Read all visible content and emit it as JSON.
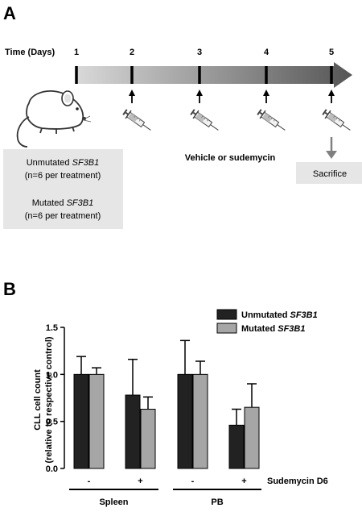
{
  "panel_a": {
    "letter": "A",
    "time_label": "Time (Days)",
    "days": [
      "1",
      "2",
      "3",
      "4",
      "5"
    ],
    "injection_days": [
      2,
      3,
      4,
      5
    ],
    "treatment_label": "Vehicle or sudemycin",
    "sacrifice_label": "Sacrifice",
    "groups": {
      "line1_prefix": "Unmutated ",
      "line1_gene": "SF3B1",
      "line2": "(n=6 per treatment)",
      "line3_prefix": "Mutated ",
      "line3_gene": "SF3B1",
      "line4": "(n=6 per treatment)"
    },
    "colors": {
      "arrow_dark": "#555555",
      "arrow_light": "#d9d9d9",
      "box_fill": "#e6e6e6"
    }
  },
  "panel_b": {
    "letter": "B",
    "legend": [
      {
        "prefix": "Unmutated ",
        "gene": "SF3B1",
        "color": "#222222"
      },
      {
        "prefix": "Mutated ",
        "gene": "SF3B1",
        "color": "#a6a6a6"
      }
    ],
    "ylabel_line1": "CLL cell count",
    "ylabel_line2": "(relative to respective control)",
    "yticks": [
      "0.0",
      "0.5",
      "1.0",
      "1.5"
    ],
    "treatment_signs": [
      "-",
      "+",
      "-",
      "+"
    ],
    "treatment_name": "Sudemycin D6",
    "tissues": [
      "Spleen",
      "PB"
    ]
  },
  "chart_data": {
    "type": "bar",
    "categories": [
      "Spleen -",
      "Spleen +",
      "PB -",
      "PB +"
    ],
    "series": [
      {
        "name": "Unmutated SF3B1",
        "values": [
          1.0,
          0.78,
          1.0,
          0.46
        ],
        "errors": [
          0.19,
          0.38,
          0.36,
          0.17
        ]
      },
      {
        "name": "Mutated SF3B1",
        "values": [
          1.0,
          0.63,
          1.0,
          0.65
        ],
        "errors": [
          0.07,
          0.13,
          0.14,
          0.25
        ]
      }
    ],
    "ylabel": "CLL cell count (relative to respective control)",
    "ylim": [
      0,
      1.5
    ],
    "grid": false,
    "legend": "top-right"
  }
}
